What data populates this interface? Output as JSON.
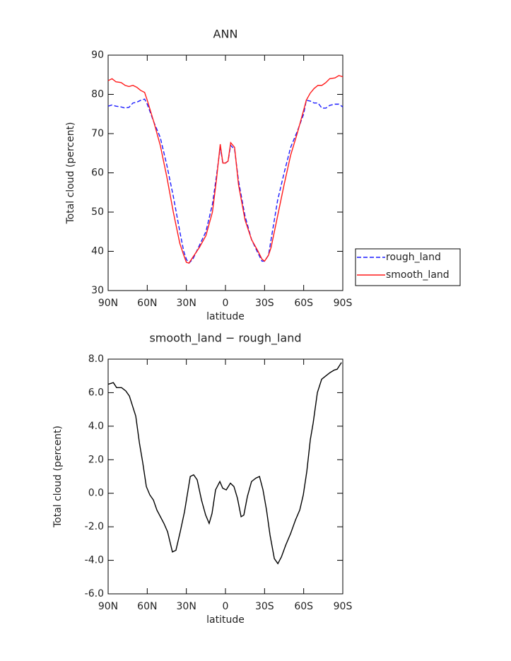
{
  "chart_data": [
    {
      "type": "line",
      "title": "ANN",
      "xlabel": "latitude",
      "ylabel": "Total cloud (percent)",
      "x": [
        90,
        87,
        84,
        80,
        77,
        74,
        71,
        68,
        65,
        62,
        60,
        55,
        50,
        45,
        40,
        35,
        32,
        30,
        28,
        25,
        20,
        15,
        10,
        7,
        4,
        2,
        0,
        -2,
        -4,
        -7,
        -10,
        -15,
        -20,
        -25,
        -28,
        -30,
        -33,
        -35,
        -40,
        -45,
        -50,
        -55,
        -60,
        -62,
        -65,
        -68,
        -71,
        -74,
        -77,
        -80,
        -84,
        -87,
        -90
      ],
      "series": [
        {
          "name": "rough_land",
          "color": "#1a1aff",
          "dash": true,
          "values": [
            77,
            77.3,
            77,
            76.8,
            76.5,
            76.7,
            77.8,
            78,
            78.5,
            78.8,
            77.5,
            73,
            69,
            62,
            54,
            45,
            40,
            38,
            37,
            38,
            41.5,
            45,
            52,
            59,
            66.5,
            62.5,
            62.5,
            63,
            67,
            66,
            58,
            49,
            43,
            39.5,
            37.5,
            37.5,
            39,
            43,
            53,
            60,
            66.5,
            70.5,
            75,
            78.5,
            78.3,
            77.8,
            77.8,
            76.5,
            76.5,
            77.2,
            77.5,
            77.5,
            76.8
          ]
        },
        {
          "name": "smooth_land",
          "color": "#ff1a1a",
          "dash": false,
          "values": [
            83.5,
            84,
            83.2,
            83,
            82.3,
            82,
            82.3,
            81.8,
            81,
            80.5,
            78.5,
            73,
            67,
            59,
            50,
            42,
            39,
            37.2,
            37,
            38.5,
            41,
            44,
            50,
            58,
            67.3,
            62.5,
            62.5,
            63,
            67.7,
            66.5,
            57,
            48,
            43,
            40,
            38,
            37.5,
            39,
            41,
            49,
            57,
            64.5,
            70,
            76,
            78.5,
            80.3,
            81.5,
            82.3,
            82.3,
            83,
            84,
            84.2,
            84.8,
            84.5
          ]
        }
      ],
      "xlim": [
        90,
        -90
      ],
      "xticks": [
        {
          "value": 90,
          "label": "90N"
        },
        {
          "value": 60,
          "label": "60N"
        },
        {
          "value": 30,
          "label": "30N"
        },
        0,
        {
          "value": -30,
          "label": "30S"
        },
        {
          "value": -60,
          "label": "60S"
        },
        {
          "value": -90,
          "label": "90S"
        }
      ],
      "ylim": [
        30,
        90
      ],
      "yticks": [
        30,
        40,
        50,
        60,
        70,
        80,
        90
      ],
      "legend": "right"
    },
    {
      "type": "line",
      "title": "smooth_land − rough_land",
      "xlabel": "latitude",
      "ylabel": "Total cloud (percent)",
      "x": [
        90,
        86,
        83.5,
        79.7,
        76.4,
        73.7,
        68.8,
        66,
        63.4,
        60.7,
        58,
        55.3,
        52.6,
        47.2,
        44.4,
        40.7,
        38,
        34.7,
        31.4,
        27,
        24.4,
        21.7,
        18.4,
        15.2,
        12.5,
        10.3,
        7.6,
        4.3,
        2.1,
        -0.6,
        -3.8,
        -6.5,
        -9.2,
        -12,
        -14.1,
        -16.8,
        -20,
        -23.3,
        -26.1,
        -28.8,
        -31.5,
        -34.2,
        -37.5,
        -40.2,
        -42.9,
        -46.2,
        -50,
        -53.7,
        -57,
        -59.7,
        -62.4,
        -65.1,
        -67.3,
        -70.5,
        -73.8,
        -77,
        -80.3,
        -83.5,
        -85.7,
        -89
      ],
      "values": [
        6.5,
        6.6,
        6.3,
        6.3,
        6.1,
        5.8,
        4.6,
        3,
        1.8,
        0.4,
        -0.1,
        -0.4,
        -1,
        -1.8,
        -2.3,
        -3.5,
        -3.4,
        -2.3,
        -1.1,
        1,
        1.1,
        0.8,
        -0.4,
        -1.3,
        -1.8,
        -1.2,
        0.2,
        0.7,
        0.3,
        0.2,
        0.6,
        0.4,
        -0.3,
        -1.4,
        -1.3,
        -0.2,
        0.7,
        0.9,
        1,
        0.2,
        -1,
        -2.5,
        -3.9,
        -4.2,
        -3.8,
        -3.1,
        -2.4,
        -1.6,
        -1,
        -0.1,
        1.3,
        3.2,
        4.2,
        6,
        6.8,
        7,
        7.2,
        7.35,
        7.4,
        7.8
      ],
      "color": "#000000",
      "xlim": [
        90,
        -90
      ],
      "xticks": [
        {
          "value": 90,
          "label": "90N"
        },
        {
          "value": 60,
          "label": "60N"
        },
        {
          "value": 30,
          "label": "30N"
        },
        0,
        {
          "value": -30,
          "label": "30S"
        },
        {
          "value": -60,
          "label": "60S"
        },
        {
          "value": -90,
          "label": "90S"
        }
      ],
      "ylim": [
        -6,
        8
      ],
      "yticks": [
        {
          "value": -6,
          "label": "-6.0"
        },
        {
          "value": -4,
          "label": "-4.0"
        },
        {
          "value": -2,
          "label": "-2.0"
        },
        {
          "value": 0,
          "label": "0.0"
        },
        {
          "value": 2,
          "label": "2.0"
        },
        {
          "value": 4,
          "label": "4.0"
        },
        {
          "value": 6,
          "label": "6.0"
        },
        {
          "value": 8,
          "label": "8.0"
        }
      ]
    }
  ]
}
